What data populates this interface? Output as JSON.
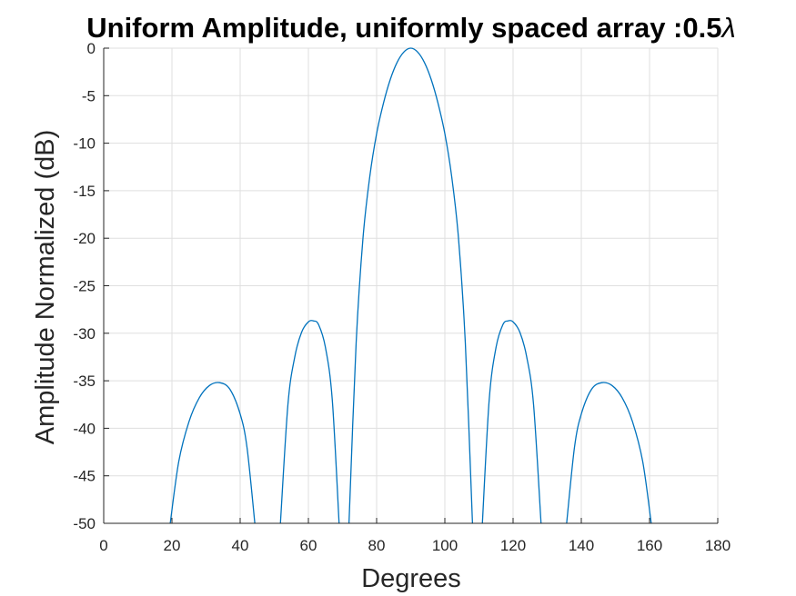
{
  "chart_data": {
    "type": "line",
    "title": "Uniform Amplitude, uniformly spaced array :0.5",
    "title_symbol": "λ",
    "xlabel": "Degrees",
    "ylabel": "Amplitude Normalized (dB)",
    "xlim": [
      0,
      180
    ],
    "ylim": [
      -50,
      0
    ],
    "xticks": [
      0,
      20,
      40,
      60,
      80,
      100,
      120,
      140,
      160,
      180
    ],
    "yticks": [
      0,
      -5,
      -10,
      -15,
      -20,
      -25,
      -30,
      -35,
      -40,
      -45,
      -50
    ],
    "ytick_labels": [
      "0",
      "-5",
      "-10",
      "-15",
      "-20",
      "-25",
      "-30",
      "-35",
      "-40",
      "-45",
      "-50"
    ],
    "grid": true,
    "line_color": "#0072bd",
    "series": [
      {
        "values_description_free": true,
        "lobes": [
          {
            "x": [
              19.5,
              22,
              25,
              28,
              31,
              34,
              37,
              40,
              42,
              44.3
            ],
            "y": [
              -50,
              -43.5,
              -39.3,
              -36.8,
              -35.5,
              -35.2,
              -35.9,
              -38.5,
              -42,
              -50
            ]
          },
          {
            "x": [
              51.8,
              54,
              56,
              58,
              60,
              61.5,
              63,
              65,
              67,
              69
            ],
            "y": [
              -50,
              -37.5,
              -32.5,
              -29.9,
              -28.8,
              -28.7,
              -29.1,
              -31.5,
              -37,
              -50
            ]
          },
          {
            "x": [
              71.9,
              74,
              76,
              78,
              80,
              82,
              84,
              86,
              88,
              90,
              92,
              94,
              96,
              98,
              100,
              102,
              104,
              106,
              108.1
            ],
            "y": [
              -50,
              -31,
              -20,
              -13.5,
              -9,
              -5.8,
              -3.3,
              -1.5,
              -0.4,
              0,
              -0.4,
              -1.5,
              -3.3,
              -5.8,
              -9,
              -13.5,
              -20,
              -31,
              -50
            ]
          },
          {
            "x": [
              111,
              113,
              115,
              117,
              118.5,
              120,
              122,
              124,
              126,
              128.2
            ],
            "y": [
              -50,
              -37,
              -31.5,
              -29.1,
              -28.7,
              -28.8,
              -29.9,
              -32.5,
              -37.5,
              -50
            ]
          },
          {
            "x": [
              135.7,
              138,
              140,
              143,
              146,
              149,
              152,
              155,
              158,
              160.5
            ],
            "y": [
              -50,
              -42,
              -38.5,
              -35.9,
              -35.2,
              -35.5,
              -36.8,
              -39.3,
              -43.5,
              -50
            ]
          }
        ]
      }
    ]
  }
}
